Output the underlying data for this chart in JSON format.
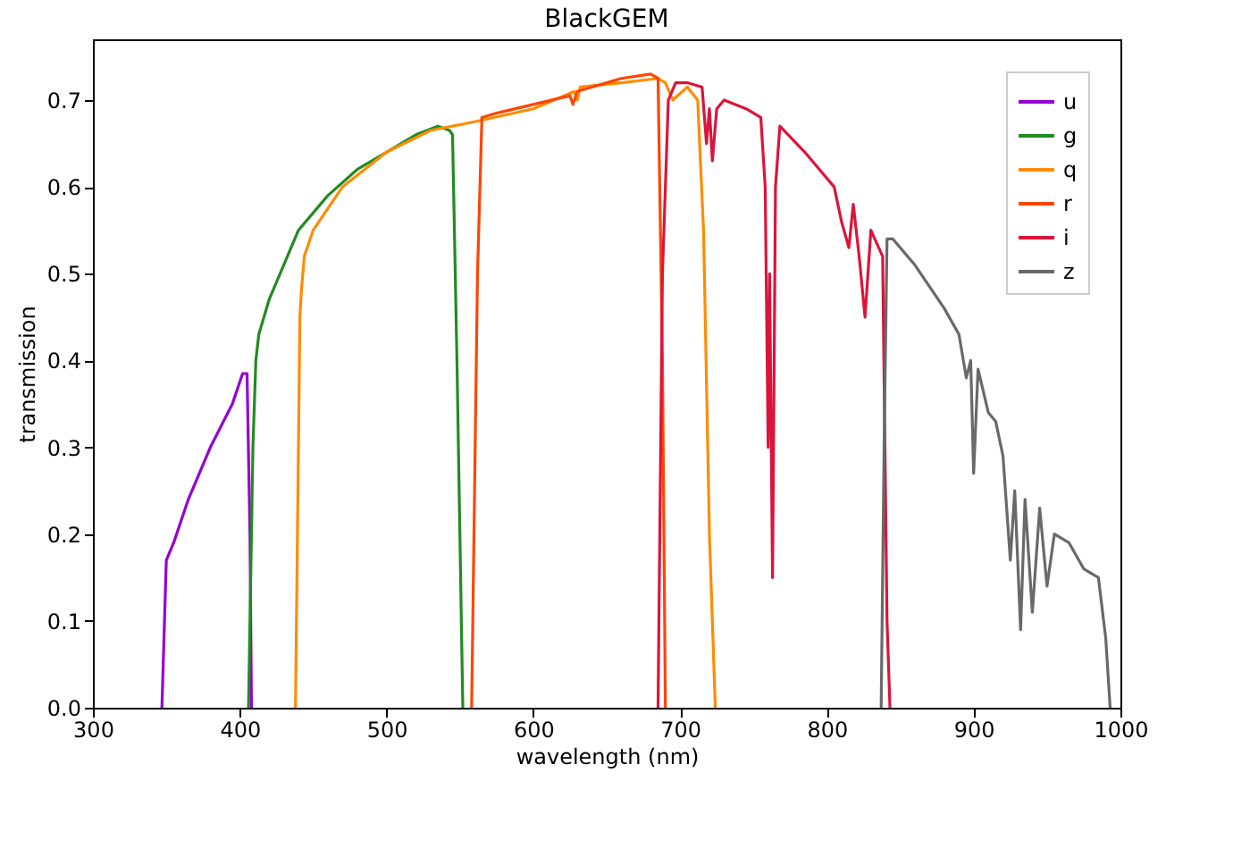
{
  "chart_data": {
    "type": "line",
    "title": "BlackGEM",
    "xlabel": "wavelength (nm)",
    "ylabel": "transmission",
    "xlim": [
      300,
      1000
    ],
    "xticks": [
      300,
      400,
      500,
      600,
      700,
      800,
      900,
      1000
    ],
    "ylim": [
      0,
      0.77
    ],
    "yticks": [
      {
        "value": 0,
        "label": "0.0"
      },
      0.1,
      0.2,
      0.3,
      0.4,
      0.5,
      0.6,
      0.7
    ],
    "grid": false,
    "legend": "top right",
    "series": [
      {
        "name": "u",
        "color": "#9400d3",
        "x": [
          347,
          350,
          355,
          365,
          380,
          395,
          402,
          405,
          407,
          408
        ],
        "values": [
          0,
          0.17,
          0.19,
          0.24,
          0.3,
          0.35,
          0.385,
          0.385,
          0.2,
          0
        ]
      },
      {
        "name": "g",
        "color": "#228b22",
        "x": [
          406,
          409,
          411,
          413,
          420,
          430,
          440,
          460,
          480,
          500,
          520,
          535,
          543,
          545,
          548,
          552
        ],
        "values": [
          0,
          0.3,
          0.4,
          0.43,
          0.47,
          0.51,
          0.55,
          0.59,
          0.62,
          0.64,
          0.66,
          0.67,
          0.665,
          0.66,
          0.4,
          0
        ]
      },
      {
        "name": "q",
        "color": "#ff8c00",
        "x": [
          438,
          441,
          442,
          444,
          450,
          470,
          500,
          530,
          560,
          600,
          628,
          630,
          632,
          660,
          685,
          690,
          695,
          705,
          712,
          716,
          720,
          724
        ],
        "values": [
          0,
          0.45,
          0.48,
          0.52,
          0.55,
          0.6,
          0.64,
          0.665,
          0.675,
          0.69,
          0.71,
          0.7,
          0.715,
          0.72,
          0.725,
          0.72,
          0.7,
          0.715,
          0.7,
          0.55,
          0.2,
          0
        ]
      },
      {
        "name": "r",
        "color": "#ff4500",
        "x": [
          558,
          562,
          565,
          575,
          600,
          625,
          627,
          630,
          660,
          680,
          685,
          688,
          690
        ],
        "values": [
          0,
          0.5,
          0.68,
          0.685,
          0.695,
          0.705,
          0.695,
          0.71,
          0.725,
          0.73,
          0.725,
          0.4,
          0
        ]
      },
      {
        "name": "i",
        "color": "#dc143c",
        "x": [
          685,
          688,
          692,
          697,
          705,
          715,
          718,
          720,
          722,
          725,
          730,
          745,
          755,
          758,
          760,
          761,
          763,
          765,
          768,
          785,
          800,
          805,
          810,
          815,
          818,
          822,
          826,
          830,
          838,
          841,
          843
        ],
        "values": [
          0,
          0.5,
          0.7,
          0.72,
          0.72,
          0.715,
          0.65,
          0.69,
          0.63,
          0.69,
          0.7,
          0.69,
          0.68,
          0.6,
          0.3,
          0.5,
          0.15,
          0.6,
          0.67,
          0.64,
          0.61,
          0.6,
          0.56,
          0.53,
          0.58,
          0.52,
          0.45,
          0.55,
          0.52,
          0.1,
          0
        ]
      },
      {
        "name": "z",
        "color": "#696969",
        "x": [
          837,
          839,
          841,
          845,
          860,
          880,
          890,
          895,
          898,
          900,
          903,
          910,
          915,
          920,
          925,
          928,
          932,
          935,
          940,
          945,
          950,
          955,
          965,
          975,
          985,
          990,
          993
        ],
        "values": [
          0,
          0.3,
          0.54,
          0.54,
          0.51,
          0.46,
          0.43,
          0.38,
          0.4,
          0.27,
          0.39,
          0.34,
          0.33,
          0.29,
          0.17,
          0.25,
          0.09,
          0.24,
          0.11,
          0.23,
          0.14,
          0.2,
          0.19,
          0.16,
          0.15,
          0.08,
          0
        ]
      }
    ]
  }
}
